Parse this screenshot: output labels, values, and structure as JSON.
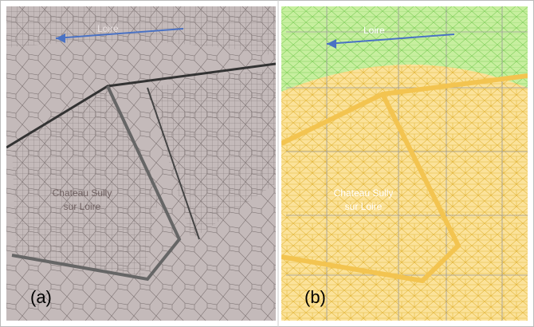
{
  "panels": [
    {
      "label": "(a)",
      "river": "Loire",
      "site": [
        "Chateau Sully",
        "sur Loire"
      ]
    },
    {
      "label": "(b)",
      "river": "Loire",
      "site": [
        "Chateau Sully",
        "sur Loire"
      ]
    }
  ]
}
